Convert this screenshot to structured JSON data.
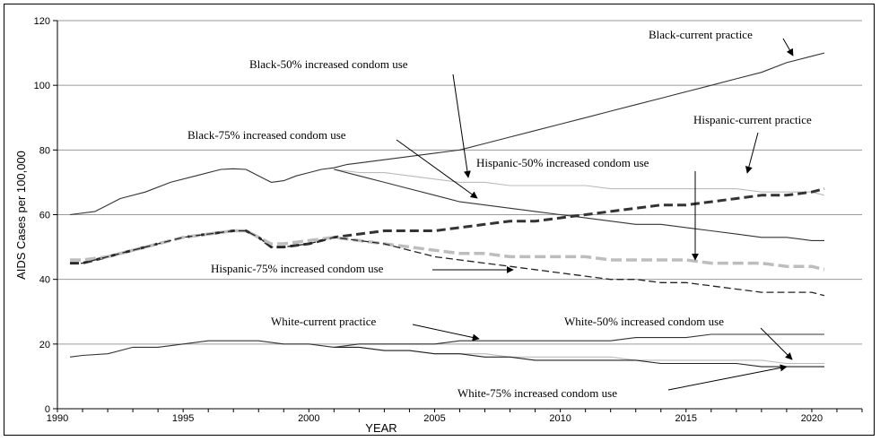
{
  "chart_data": {
    "type": "line",
    "title": "",
    "xlabel": "YEAR",
    "ylabel": "AIDS Cases per 100,000",
    "xlim": [
      1990,
      2022
    ],
    "ylim": [
      0,
      120
    ],
    "x_ticks": [
      "1990",
      "1995",
      "2000",
      "2005",
      "2010",
      "2015",
      "2020"
    ],
    "y_ticks": [
      "0",
      "20",
      "40",
      "60",
      "80",
      "100",
      "120"
    ],
    "grid": "horizontal",
    "legend": "none",
    "series": [
      {
        "name": "Black-current practice",
        "color": "#333333",
        "width": 1.1,
        "dash": "",
        "x": [
          1990.5,
          1991.5,
          1992,
          1992.5,
          1993.5,
          1994.5,
          1995.5,
          1996.5,
          1997,
          1997.5,
          1998,
          1998.5,
          1999,
          1999.5,
          2000,
          2000.5,
          2001,
          2001.5,
          2002,
          2003,
          2004,
          2005,
          2006,
          2007,
          2008,
          2009,
          2010,
          2011,
          2012,
          2013,
          2014,
          2015,
          2016,
          2017,
          2018,
          2019,
          2020,
          2020.5
        ],
        "y": [
          60,
          61,
          63,
          65,
          67,
          70,
          72,
          74,
          74.2,
          74,
          72,
          70,
          70.5,
          72,
          73,
          74,
          74.5,
          75.5,
          76,
          77,
          78,
          79,
          80,
          82,
          84,
          86,
          88,
          90,
          92,
          94,
          96,
          98,
          100,
          102,
          104,
          107,
          109,
          110
        ]
      },
      {
        "name": "Black-50% increased condom use",
        "color": "#bbbbbb",
        "width": 1.1,
        "dash": "",
        "x": [
          2001,
          2002,
          2003,
          2004,
          2005,
          2006,
          2007,
          2008,
          2009,
          2010,
          2011,
          2012,
          2013,
          2014,
          2015,
          2016,
          2017,
          2018,
          2019,
          2020,
          2020.5
        ],
        "y": [
          74,
          73,
          73,
          72,
          71,
          70,
          70,
          69,
          69,
          69,
          69,
          68,
          68,
          68,
          68,
          68,
          68,
          67,
          67,
          67,
          66
        ]
      },
      {
        "name": "Black-75% increased condom use",
        "color": "#333333",
        "width": 1.1,
        "dash": "",
        "x": [
          2001,
          2002,
          2003,
          2004,
          2005,
          2006,
          2007,
          2008,
          2009,
          2010,
          2011,
          2012,
          2013,
          2014,
          2015,
          2016,
          2017,
          2018,
          2019,
          2020,
          2020.5
        ],
        "y": [
          74,
          72,
          70,
          68,
          66,
          64,
          63,
          62,
          61,
          60,
          59,
          58,
          57,
          57,
          56,
          55,
          54,
          53,
          53,
          52,
          52
        ]
      },
      {
        "name": "Hispanic-current practice",
        "color": "#333333",
        "width": 3,
        "dash": "10 5",
        "x": [
          1990.5,
          1991,
          1992,
          1993,
          1994,
          1995,
          1996,
          1997,
          1997.5,
          1998,
          1998.5,
          1999,
          2000,
          2001,
          2002,
          2003,
          2004,
          2005,
          2006,
          2007,
          2008,
          2009,
          2010,
          2011,
          2012,
          2013,
          2014,
          2015,
          2016,
          2017,
          2018,
          2019,
          2020,
          2020.5
        ],
        "y": [
          45,
          45,
          47,
          49,
          51,
          53,
          54,
          55,
          55,
          53,
          50,
          50,
          51,
          53,
          54,
          55,
          55,
          55,
          56,
          57,
          58,
          58,
          59,
          60,
          61,
          62,
          63,
          63,
          64,
          65,
          66,
          66,
          67,
          68
        ]
      },
      {
        "name": "Hispanic-50% increased condom use",
        "color": "#bdbdbd",
        "width": 3.5,
        "dash": "12 5",
        "x": [
          1990.5,
          1991,
          1992,
          1993,
          1994,
          1995,
          1996,
          1997,
          1997.5,
          1998,
          1998.5,
          1999,
          2000,
          2001,
          2002,
          2003,
          2004,
          2005,
          2006,
          2007,
          2008,
          2009,
          2010,
          2011,
          2012,
          2013,
          2014,
          2015,
          2016,
          2017,
          2018,
          2019,
          2020,
          2020.5
        ],
        "y": [
          46,
          46,
          47,
          49,
          51,
          53,
          54,
          55,
          55,
          53,
          51,
          51,
          52,
          53,
          52,
          51,
          50,
          49,
          48,
          48,
          47,
          47,
          47,
          47,
          46,
          46,
          46,
          46,
          45,
          45,
          45,
          44,
          44,
          43
        ]
      },
      {
        "name": "Hispanic-75% increased condom use",
        "color": "#222222",
        "width": 1.3,
        "dash": "8 4",
        "x": [
          1990.5,
          1991,
          1992,
          1993,
          1994,
          1995,
          1996,
          1997,
          1997.5,
          1998,
          1998.5,
          1999,
          2000,
          2001,
          2002,
          2003,
          2004,
          2005,
          2006,
          2007,
          2008,
          2009,
          2010,
          2011,
          2012,
          2013,
          2014,
          2015,
          2016,
          2017,
          2018,
          2019,
          2020,
          2020.5
        ],
        "y": [
          45,
          45,
          47,
          49,
          51,
          53,
          54,
          55,
          55,
          53,
          50,
          50,
          51,
          53,
          52,
          51,
          49,
          47,
          46,
          45,
          44,
          43,
          42,
          41,
          40,
          40,
          39,
          39,
          38,
          37,
          36,
          36,
          36,
          35
        ]
      },
      {
        "name": "White-current practice",
        "color": "#333333",
        "width": 1.1,
        "dash": "",
        "x": [
          1990.5,
          1991,
          1992,
          1993,
          1994,
          1995,
          1996,
          1997,
          1998,
          1999,
          2000,
          2001,
          2002,
          2003,
          2004,
          2005,
          2006,
          2007,
          2008,
          2009,
          2010,
          2011,
          2012,
          2013,
          2014,
          2015,
          2016,
          2017,
          2018,
          2019,
          2020,
          2020.5
        ],
        "y": [
          16,
          16.5,
          17,
          19,
          19,
          20,
          21,
          21,
          21,
          20,
          20,
          19,
          20,
          20,
          20,
          20,
          21,
          21,
          21,
          21,
          21,
          21,
          21,
          22,
          22,
          22,
          23,
          23,
          23,
          23,
          23,
          23
        ]
      },
      {
        "name": "White-50% increased condom use",
        "color": "#bbbbbb",
        "width": 1.1,
        "dash": "",
        "x": [
          2001,
          2002,
          2003,
          2004,
          2005,
          2006,
          2007,
          2008,
          2009,
          2010,
          2011,
          2012,
          2013,
          2014,
          2015,
          2016,
          2017,
          2018,
          2019,
          2020,
          2020.5
        ],
        "y": [
          19,
          19,
          18,
          18,
          17,
          17,
          17,
          16,
          16,
          16,
          16,
          16,
          15,
          15,
          15,
          15,
          15,
          15,
          14,
          14,
          14
        ]
      },
      {
        "name": "White-75% increased condom use",
        "color": "#222222",
        "width": 1.1,
        "dash": "",
        "x": [
          2001,
          2002,
          2003,
          2004,
          2005,
          2006,
          2007,
          2008,
          2009,
          2010,
          2011,
          2012,
          2013,
          2014,
          2015,
          2016,
          2017,
          2018,
          2019,
          2020,
          2020.5
        ],
        "y": [
          19,
          19,
          18,
          18,
          17,
          17,
          16,
          16,
          15,
          15,
          15,
          15,
          15,
          14,
          14,
          14,
          14,
          13,
          13,
          13,
          13
        ]
      }
    ],
    "annotations": [
      {
        "text": "Black-current practice"
      },
      {
        "text": "Black-50% increased condom use"
      },
      {
        "text": "Black-75% increased condom use"
      },
      {
        "text": "Hispanic-current practice"
      },
      {
        "text": "Hispanic-50% increased condom use"
      },
      {
        "text": "Hispanic-75% increased condom use"
      },
      {
        "text": "White-current practice"
      },
      {
        "text": "White-50% increased condom use"
      },
      {
        "text": "White-75% increased condom use"
      }
    ]
  }
}
